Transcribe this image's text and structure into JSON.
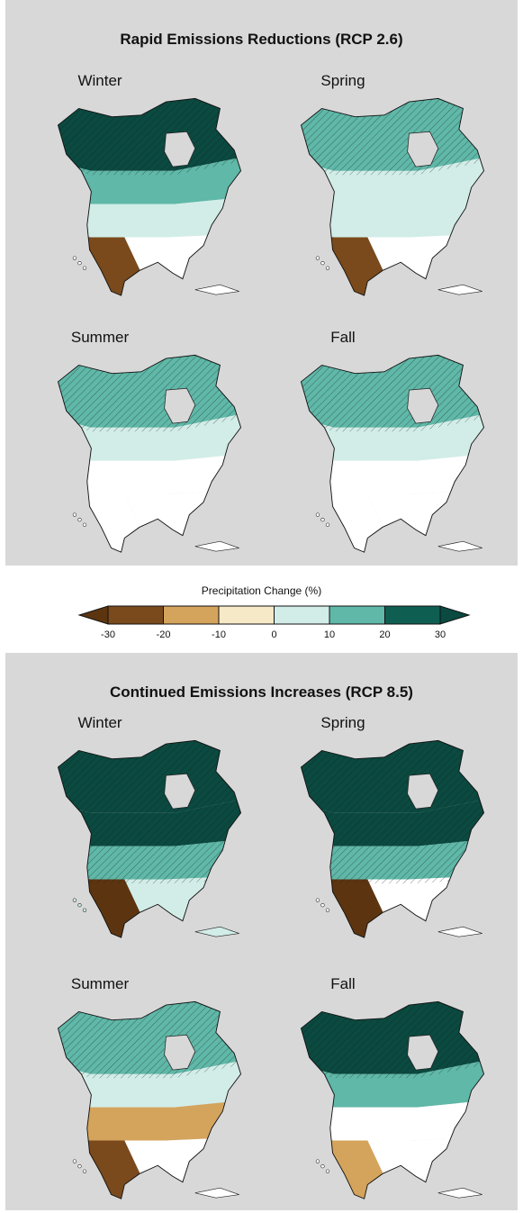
{
  "panels": [
    {
      "title": "Rapid Emissions Reductions (RCP 2.6)",
      "maps": [
        {
          "season": "Winter",
          "north": 30,
          "boreal": 20,
          "central": 10,
          "south": 0,
          "southwest": -20,
          "hatch": "north"
        },
        {
          "season": "Spring",
          "north": 20,
          "boreal": 10,
          "central": 10,
          "south": 0,
          "southwest": -20,
          "hatch": "north"
        },
        {
          "season": "Summer",
          "north": 20,
          "boreal": 10,
          "central": 0,
          "south": 0,
          "southwest": 0,
          "hatch": "north"
        },
        {
          "season": "Fall",
          "north": 20,
          "boreal": 10,
          "central": 0,
          "south": 0,
          "southwest": 0,
          "hatch": "north"
        }
      ]
    },
    {
      "title": "Continued Emissions Increases (RCP 8.5)",
      "maps": [
        {
          "season": "Winter",
          "north": 30,
          "boreal": 30,
          "central": 20,
          "south": 10,
          "southwest": -30,
          "hatch": "all"
        },
        {
          "season": "Spring",
          "north": 30,
          "boreal": 30,
          "central": 20,
          "south": 0,
          "southwest": -30,
          "hatch": "all"
        },
        {
          "season": "Summer",
          "north": 20,
          "boreal": 10,
          "central": -10,
          "south": 0,
          "southwest": -20,
          "hatch": "north"
        },
        {
          "season": "Fall",
          "north": 30,
          "boreal": 20,
          "central": 0,
          "south": 0,
          "southwest": -10,
          "hatch": "north"
        }
      ]
    }
  ],
  "legend": {
    "title": "Precipitation Change (%)",
    "ticks": [
      "-30",
      "-20",
      "-10",
      "0",
      "10",
      "20",
      "30"
    ],
    "colors": [
      "#7a4a1c",
      "#d4a45c",
      "#f6e9c8",
      "#d2ede8",
      "#5fb8a8",
      "#0f5e52"
    ],
    "under_color": "#5c3510",
    "over_color": "#0a4a40"
  }
}
